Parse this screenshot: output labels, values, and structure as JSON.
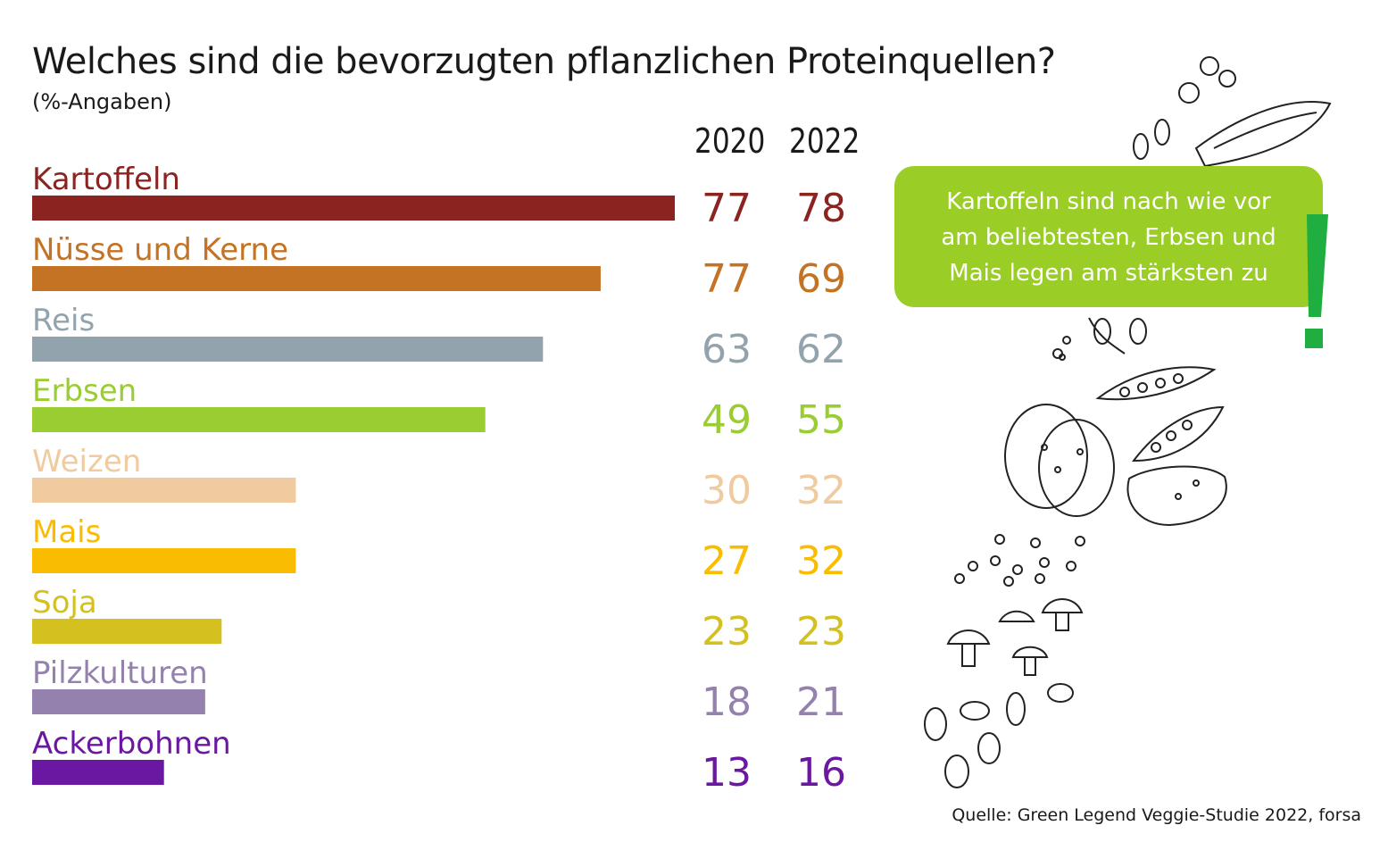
{
  "title": "Welches sind die bevorzugten pflanzlichen Proteinquellen?",
  "subtitle": "(%-Angaben)",
  "callout": {
    "lines": [
      "Kartoffeln sind nach wie vor",
      "am beliebtesten, Erbsen und",
      "Mais legen am stärksten zu"
    ]
  },
  "source": "Quelle: Green Legend Veggie-Studie 2022, forsa",
  "chart_data": {
    "type": "bar",
    "orientation": "horizontal",
    "bar_series": "2022",
    "years": [
      "2020",
      "2022"
    ],
    "categories": [
      "Kartoffeln",
      "Nüsse und Kerne",
      "Reis",
      "Erbsen",
      "Weizen",
      "Mais",
      "Soja",
      "Pilzkulturen",
      "Ackerbohnen"
    ],
    "series": [
      {
        "name": "2020",
        "values": [
          77,
          77,
          63,
          49,
          30,
          27,
          23,
          18,
          13
        ]
      },
      {
        "name": "2022",
        "values": [
          78,
          69,
          62,
          55,
          32,
          32,
          23,
          21,
          16
        ]
      }
    ],
    "colors": [
      "#8b2420",
      "#c47223",
      "#93a3ad",
      "#9acd32",
      "#f0cba0",
      "#f9bc00",
      "#d4c11f",
      "#9481ad",
      "#6a17a1"
    ],
    "xlim": [
      0,
      78
    ],
    "grid": false,
    "legend": "none"
  }
}
